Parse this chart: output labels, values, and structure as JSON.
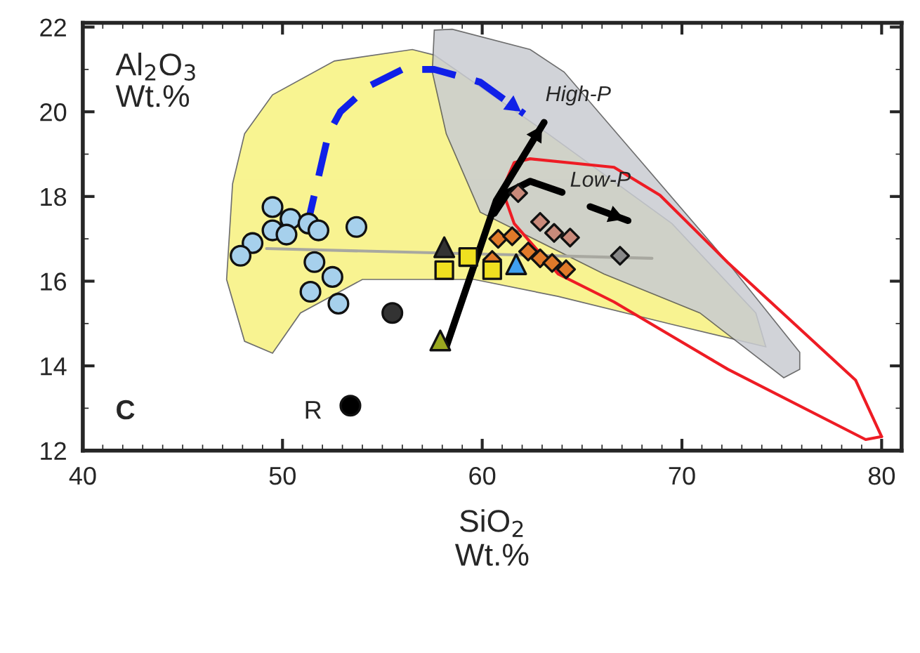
{
  "chart_data": {
    "type": "scatter",
    "xlabel": "SiO$_{2}$\nWt.%",
    "ylabel": "Al$_{2}$O$_{3}$\nWt.%",
    "xlim": [
      40,
      81
    ],
    "ylim": [
      12,
      22.1
    ],
    "xticks": [
      40,
      50,
      60,
      70,
      80
    ],
    "yticks": [
      12,
      14,
      16,
      18,
      20,
      22
    ],
    "grid": false,
    "legend": false,
    "series": [
      {
        "type": "area",
        "color": "#f7f27e",
        "x": [
          48.1,
          49.5,
          52.6,
          56.5,
          57.6,
          63.3,
          69.5,
          73.7,
          74.2,
          69.5,
          63.8,
          59.6,
          55.4,
          54.0,
          50.9,
          49.5,
          48.1,
          47.2,
          47.5
        ],
        "values": [
          19.48,
          20.4,
          21.2,
          21.47,
          21.34,
          19.48,
          17.36,
          15.25,
          14.45,
          14.98,
          15.64,
          16.04,
          16.04,
          16.04,
          15.25,
          14.3,
          14.58,
          16.04,
          18.3
        ]
      },
      {
        "type": "area",
        "color": "#c9ccd2",
        "x": [
          57.6,
          58.5,
          62.4,
          64.1,
          68.0,
          72.3,
          75.9,
          75.9,
          75.1,
          70.9,
          66.1,
          59.9,
          58.2,
          57.5
        ],
        "values": [
          21.93,
          21.95,
          21.47,
          20.94,
          18.8,
          16.44,
          14.32,
          13.92,
          13.72,
          15.25,
          16.17,
          17.63,
          19.48,
          20.94
        ]
      },
      {
        "type": "line",
        "color": "#ee1c24",
        "x": [
          61.0,
          61.6,
          62.4,
          66.6,
          68.9,
          72.3,
          78.7,
          80.0
        ],
        "values": [
          18.16,
          18.8,
          18.89,
          18.69,
          18.03,
          16.44,
          13.66,
          12.33
        ]
      },
      {
        "type": "line",
        "color": "#ee1c24",
        "x": [
          61.0,
          61.6,
          63.8,
          66.6,
          72.3,
          79.2,
          80.0
        ],
        "values": [
          18.16,
          17.36,
          16.17,
          15.51,
          13.92,
          12.26,
          12.33
        ]
      },
      {
        "type": "line",
        "color": "#a8a8a0",
        "x": [
          49.2,
          68.5
        ],
        "values": [
          16.77,
          16.54
        ]
      },
      {
        "type": "line",
        "color": "#1020e8",
        "line_style": "dashed",
        "x": [
          51.2,
          52.3,
          52.9,
          54.3,
          56.0,
          57.6,
          59.9,
          62.1
        ],
        "values": [
          17.23,
          19.48,
          20.0,
          20.6,
          21.0,
          21.0,
          20.7,
          19.95
        ]
      },
      {
        "type": "line",
        "color": "#000000",
        "line_style": "solid",
        "x": [
          58.2,
          60.7,
          63.1
        ],
        "values": [
          14.45,
          17.9,
          19.75
        ]
      },
      {
        "type": "line",
        "color": "#000000",
        "x": [
          60.6,
          61.3,
          62.4,
          64.0
        ],
        "values": [
          17.6,
          18.1,
          18.36,
          18.1
        ]
      },
      {
        "type": "line",
        "color": "#000000",
        "line_style": "solid",
        "x": [
          65.4,
          67.3
        ],
        "values": [
          17.76,
          17.43
        ]
      },
      {
        "marker": "circle",
        "color": "#a6d0ec",
        "x": [
          49.5,
          50.4,
          49.5,
          50.2,
          51.3,
          51.8,
          53.7,
          48.5,
          47.9,
          51.6,
          52.5,
          51.4,
          52.8
        ],
        "values": [
          17.75,
          17.47,
          17.2,
          17.1,
          17.36,
          17.2,
          17.28,
          16.9,
          16.6,
          16.45,
          16.1,
          15.75,
          15.47
        ]
      },
      {
        "marker": "circle",
        "color": "#333333",
        "x": [
          55.5
        ],
        "values": [
          15.25
        ]
      },
      {
        "marker": "circle",
        "color": "#000000",
        "x": [
          53.4
        ],
        "values": [
          13.06
        ]
      },
      {
        "marker": "diamond",
        "color": "#c98a7a",
        "x": [
          61.8,
          62.9,
          63.6,
          64.4
        ],
        "values": [
          18.08,
          17.4,
          17.14,
          17.03
        ]
      },
      {
        "marker": "diamond",
        "color": "#e07a2a",
        "x": [
          60.8,
          61.5,
          60.5,
          62.3,
          62.9,
          63.5,
          64.2
        ],
        "values": [
          17.0,
          17.06,
          16.5,
          16.7,
          16.54,
          16.43,
          16.28
        ]
      },
      {
        "marker": "square",
        "color": "#f0e020",
        "x": [
          58.1,
          59.3,
          60.5
        ],
        "values": [
          16.26,
          16.57,
          16.26
        ]
      },
      {
        "marker": "triangle",
        "color": "#9aa820",
        "x": [
          57.9
        ],
        "values": [
          14.6
        ]
      },
      {
        "marker": "triangle",
        "color": "#333333",
        "x": [
          58.1
        ],
        "values": [
          16.8
        ]
      },
      {
        "marker": "triangle",
        "color": "#40a0f0",
        "x": [
          61.7
        ],
        "values": [
          16.4
        ]
      },
      {
        "marker": "diamond",
        "color": "#888888",
        "x": [
          66.9
        ],
        "values": [
          16.6
        ]
      }
    ],
    "annotations": [
      "High-P",
      "Low-P",
      "R",
      "C"
    ]
  }
}
